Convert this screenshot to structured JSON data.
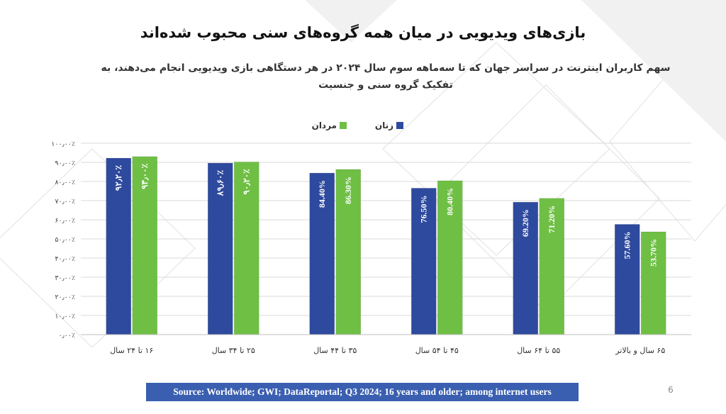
{
  "page": {
    "title": "بازی‌های ویدیویی در میان همه گروه‌های سنی محبوب شده‌اند",
    "subtitle": "سهم کاربران اینترنت در سراسر جهان که تا سه‌ماهه سوم سال ۲۰۲۴ در هر دستگاهی بازی ویدیویی انجام می‌دهند، به تفکیک گروه سنی و جنسیت",
    "source": "Source: Worldwide; GWI; DataReportal; Q3 2024; 16 years and older; among internet users",
    "page_number": "6"
  },
  "chart_data": {
    "type": "bar",
    "title": "",
    "xlabel": "",
    "ylabel": "",
    "categories": [
      "۱۶ تا ۲۴ سال",
      "۲۵ تا ۳۴ سال",
      "۳۵ تا ۴۴ سال",
      "۴۵ تا ۵۴ سال",
      "۵۵ تا ۶۴ سال",
      "۶۵ سال و بالاتر"
    ],
    "series": [
      {
        "name": "زنان",
        "color": "#2e4a9e",
        "values": [
          92.2,
          89.6,
          84.4,
          76.5,
          69.2,
          57.6
        ],
        "labels": [
          "۹۲٫۲۰٪",
          "۸۹٫۶۰٪",
          "84.40%",
          "76.50%",
          "69.20%",
          "57.60%"
        ]
      },
      {
        "name": "مردان",
        "color": "#6fbf45",
        "values": [
          93.0,
          90.2,
          86.3,
          80.4,
          71.2,
          53.7
        ],
        "labels": [
          "۹۳٫۰۰٪",
          "۹۰٫۲۰٪",
          "86.30%",
          "80.40%",
          "71.20%",
          "53.70%"
        ]
      }
    ],
    "ylim": [
      0,
      100
    ],
    "yticks": [
      0,
      10,
      20,
      30,
      40,
      50,
      60,
      70,
      80,
      90,
      100
    ],
    "ytick_labels": [
      "۰٫۰۰٪",
      "۱۰٫۰۰٪",
      "۲۰٫۰۰٪",
      "۳۰٫۰۰٪",
      "۴۰٫۰۰٪",
      "۵۰٫۰۰٪",
      "۶۰٫۰۰٪",
      "۷۰٫۰۰٪",
      "۸۰٫۰۰٪",
      "۹۰٫۰۰٪",
      "۱۰۰٫۰۰٪"
    ],
    "grid": true,
    "legend": "top-center"
  }
}
